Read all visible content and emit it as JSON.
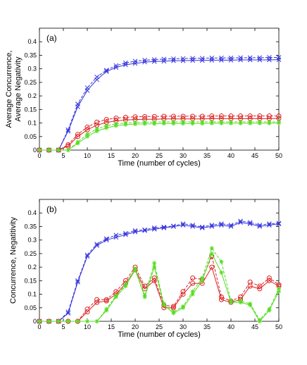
{
  "chart_data": [
    {
      "type": "line",
      "panel_label": "(a)",
      "xlabel": "Time (number of cycles)",
      "ylabel_lines": [
        "Average Concurrence,",
        "Average Negativity"
      ],
      "xlim": [
        0,
        50
      ],
      "ylim": [
        0,
        0.45
      ],
      "xticks": [
        0,
        5,
        10,
        15,
        20,
        25,
        30,
        35,
        40,
        45,
        50
      ],
      "yticks": [
        0,
        0.05,
        0.1,
        0.15,
        0.2,
        0.25,
        0.3,
        0.35,
        0.4
      ],
      "grid": false,
      "x": [
        0,
        2,
        4,
        6,
        8,
        10,
        12,
        14,
        16,
        18,
        20,
        22,
        24,
        26,
        28,
        30,
        32,
        34,
        36,
        38,
        40,
        42,
        44,
        46,
        48,
        50
      ],
      "series": [
        {
          "color": "#3333dd",
          "style": "solid",
          "marker": "x",
          "values": [
            0,
            0,
            0,
            0.07,
            0.16,
            0.22,
            0.26,
            0.29,
            0.305,
            0.315,
            0.32,
            0.325,
            0.327,
            0.328,
            0.33,
            0.33,
            0.331,
            0.331,
            0.332,
            0.332,
            0.332,
            0.333,
            0.333,
            0.333,
            0.333,
            0.334
          ]
        },
        {
          "color": "#3333dd",
          "style": "dashed",
          "marker": "x",
          "values": [
            0,
            0,
            0,
            0.075,
            0.17,
            0.23,
            0.27,
            0.295,
            0.312,
            0.322,
            0.328,
            0.332,
            0.334,
            0.336,
            0.337,
            0.338,
            0.339,
            0.339,
            0.34,
            0.34,
            0.34,
            0.341,
            0.341,
            0.341,
            0.342,
            0.342
          ]
        },
        {
          "color": "#dd2222",
          "style": "solid",
          "marker": "o",
          "values": [
            0,
            0,
            0,
            0.015,
            0.05,
            0.075,
            0.092,
            0.102,
            0.108,
            0.111,
            0.113,
            0.114,
            0.114,
            0.115,
            0.115,
            0.115,
            0.115,
            0.115,
            0.116,
            0.116,
            0.116,
            0.116,
            0.116,
            0.116,
            0.116,
            0.117
          ]
        },
        {
          "color": "#dd2222",
          "style": "dashed",
          "marker": "o",
          "values": [
            0,
            0,
            0,
            0.02,
            0.058,
            0.085,
            0.103,
            0.113,
            0.118,
            0.121,
            0.123,
            0.124,
            0.124,
            0.125,
            0.125,
            0.125,
            0.125,
            0.125,
            0.126,
            0.126,
            0.126,
            0.126,
            0.126,
            0.126,
            0.126,
            0.126
          ]
        },
        {
          "color": "#55dd22",
          "style": "solid",
          "marker": "*",
          "values": [
            0,
            0,
            0,
            0,
            0.025,
            0.05,
            0.07,
            0.082,
            0.09,
            0.094,
            0.096,
            0.097,
            0.097,
            0.098,
            0.098,
            0.098,
            0.098,
            0.098,
            0.099,
            0.099,
            0.099,
            0.099,
            0.099,
            0.099,
            0.099,
            0.1
          ]
        },
        {
          "color": "#55dd22",
          "style": "dashed",
          "marker": "*",
          "values": [
            0,
            0,
            0,
            0,
            0.03,
            0.058,
            0.078,
            0.09,
            0.097,
            0.1,
            0.102,
            0.103,
            0.103,
            0.104,
            0.104,
            0.104,
            0.104,
            0.104,
            0.104,
            0.104,
            0.104,
            0.104,
            0.104,
            0.104,
            0.104,
            0.104
          ]
        }
      ]
    },
    {
      "type": "line",
      "panel_label": "(b)",
      "xlabel": "Time (number of cycles)",
      "ylabel_lines": [
        "Concurrence, Negatitivity"
      ],
      "xlim": [
        0,
        50
      ],
      "ylim": [
        0,
        0.45
      ],
      "xticks": [
        0,
        5,
        10,
        15,
        20,
        25,
        30,
        35,
        40,
        45,
        50
      ],
      "yticks": [
        0,
        0.05,
        0.1,
        0.15,
        0.2,
        0.25,
        0.3,
        0.35,
        0.4
      ],
      "grid": false,
      "x": [
        0,
        2,
        4,
        6,
        8,
        10,
        12,
        14,
        16,
        18,
        20,
        22,
        24,
        26,
        28,
        30,
        32,
        34,
        36,
        38,
        40,
        42,
        44,
        46,
        48,
        50
      ],
      "series": [
        {
          "color": "#3333dd",
          "style": "solid",
          "marker": "x",
          "values": [
            0,
            0,
            0,
            0.03,
            0.145,
            0.24,
            0.28,
            0.3,
            0.31,
            0.32,
            0.33,
            0.335,
            0.34,
            0.345,
            0.35,
            0.355,
            0.35,
            0.345,
            0.35,
            0.355,
            0.35,
            0.365,
            0.36,
            0.35,
            0.355,
            0.36
          ]
        },
        {
          "color": "#3333dd",
          "style": "dashed",
          "marker": "x",
          "values": [
            0,
            0,
            0,
            0.035,
            0.15,
            0.245,
            0.285,
            0.305,
            0.318,
            0.325,
            0.335,
            0.338,
            0.345,
            0.348,
            0.352,
            0.36,
            0.355,
            0.348,
            0.355,
            0.36,
            0.355,
            0.37,
            0.365,
            0.355,
            0.36,
            0.362
          ]
        },
        {
          "color": "#dd2222",
          "style": "solid",
          "marker": "o",
          "values": [
            0,
            0,
            0,
            0,
            0,
            0.035,
            0.07,
            0.075,
            0.1,
            0.14,
            0.19,
            0.12,
            0.15,
            0.05,
            0.05,
            0.1,
            0.14,
            0.14,
            0.2,
            0.08,
            0.07,
            0.08,
            0.13,
            0.12,
            0.15,
            0.13
          ]
        },
        {
          "color": "#dd2222",
          "style": "dashed",
          "marker": "o",
          "values": [
            0,
            0,
            0,
            0,
            0,
            0.045,
            0.08,
            0.08,
            0.11,
            0.15,
            0.2,
            0.13,
            0.16,
            0.06,
            0.055,
            0.11,
            0.16,
            0.155,
            0.24,
            0.09,
            0.075,
            0.09,
            0.145,
            0.13,
            0.16,
            0.135
          ]
        },
        {
          "color": "#55dd22",
          "style": "solid",
          "marker": "*",
          "values": [
            0,
            0,
            0,
            0,
            0,
            0,
            0,
            0.04,
            0.09,
            0.13,
            0.19,
            0.09,
            0.2,
            0.06,
            0.03,
            0.05,
            0.1,
            0.15,
            0.25,
            0.18,
            0.07,
            0.07,
            0.06,
            0,
            0.04,
            0.11
          ]
        },
        {
          "color": "#55dd22",
          "style": "dashed",
          "marker": "*",
          "values": [
            0,
            0,
            0,
            0,
            0,
            0,
            0,
            0.045,
            0.095,
            0.135,
            0.195,
            0.095,
            0.215,
            0.065,
            0.035,
            0.055,
            0.11,
            0.16,
            0.27,
            0.22,
            0.075,
            0.075,
            0.065,
            0.005,
            0.045,
            0.12
          ]
        }
      ]
    }
  ]
}
